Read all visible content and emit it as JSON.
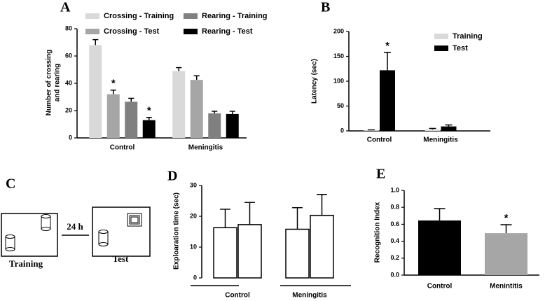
{
  "chart_data": [
    {
      "type": "bar",
      "panel": "A",
      "y_label": [
        "Number of crossing",
        "and rearing"
      ],
      "categories": [
        "Control",
        "Meningitis"
      ],
      "series": [
        {
          "name": "Crossing - Training",
          "color": "#d9d9d9",
          "values": [
            68,
            49
          ],
          "errors": [
            4,
            2.5
          ],
          "annotations": [
            null,
            null
          ]
        },
        {
          "name": "Crossing - Test",
          "color": "#a6a6a6",
          "values": [
            32,
            42.5
          ],
          "errors": [
            3,
            3
          ],
          "annotations": [
            "*",
            null
          ]
        },
        {
          "name": "Rearing - Training",
          "color": "#808080",
          "values": [
            26.5,
            18
          ],
          "errors": [
            2.5,
            1.5
          ],
          "annotations": [
            null,
            null
          ]
        },
        {
          "name": "Rearing - Test",
          "color": "#000000",
          "values": [
            13,
            17.5
          ],
          "errors": [
            2,
            2
          ],
          "annotations": [
            "*",
            null
          ]
        }
      ],
      "ylim": [
        0,
        80
      ],
      "yticks": [
        0,
        20,
        40,
        60,
        80
      ],
      "legend": "top"
    },
    {
      "type": "bar",
      "panel": "B",
      "y_label": "Latency (sec)",
      "categories": [
        "Control",
        "Meningitis"
      ],
      "series": [
        {
          "name": "Training",
          "color": "#d9d9d9",
          "values": [
            1,
            3
          ],
          "errors": [
            1,
            2
          ],
          "annotations": [
            null,
            null
          ]
        },
        {
          "name": "Test",
          "color": "#000000",
          "values": [
            122,
            9
          ],
          "errors": [
            36,
            3
          ],
          "annotations": [
            "*",
            null
          ]
        }
      ],
      "ylim": [
        0,
        200
      ],
      "yticks": [
        0,
        50,
        100,
        150,
        200
      ],
      "legend": "upper right"
    },
    {
      "type": "bar",
      "panel": "D",
      "y_label": "Exploaration time (sec)",
      "categories": [
        "Control",
        "Meningitis"
      ],
      "series": [
        {
          "color": "#ffffff",
          "values": [
            16.3,
            15.8
          ],
          "errors": [
            6,
            7
          ]
        },
        {
          "color": "#ffffff",
          "values": [
            17.3,
            20.3
          ],
          "errors": [
            7.2,
            6.8
          ]
        }
      ],
      "ylim": [
        0,
        30
      ],
      "yticks": [
        0,
        10,
        20,
        30
      ],
      "category_brackets": true
    },
    {
      "type": "bar",
      "panel": "E",
      "y_label": "Recognition Index",
      "categories": [
        "Control",
        "Menintitis"
      ],
      "series": [
        {
          "colors": [
            "#000000",
            "#a6a6a6"
          ],
          "values": [
            0.645,
            0.495
          ],
          "errors": [
            0.14,
            0.1
          ],
          "annotations": [
            null,
            "*"
          ]
        }
      ],
      "ylim": [
        0,
        1
      ],
      "yticks": [
        {
          "value": 0,
          "label": "0.0"
        },
        0.2,
        0.4,
        0.6,
        0.8,
        {
          "value": 1,
          "label": "1.0"
        }
      ]
    }
  ],
  "diagram": {
    "panel": "C",
    "left_label": "Training",
    "interval": "24 h",
    "right_label": "Test"
  }
}
